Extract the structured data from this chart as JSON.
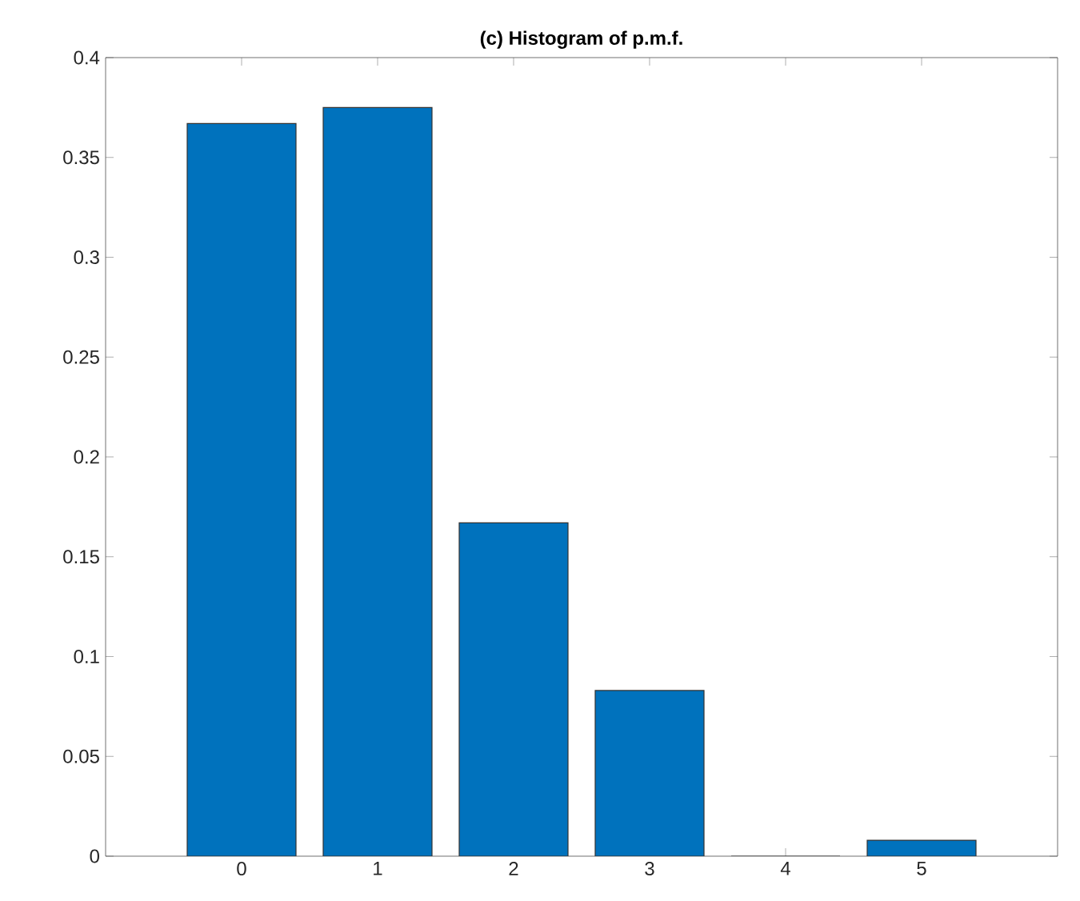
{
  "chart_data": {
    "type": "bar",
    "title": "(c) Histogram of p.m.f.",
    "x": [
      0,
      1,
      2,
      3,
      4,
      5
    ],
    "values": [
      0.367,
      0.375,
      0.167,
      0.083,
      0,
      0.008
    ],
    "color": "#0072bd",
    "xlim": [
      -1,
      6
    ],
    "xticks": [
      0,
      1,
      2,
      3,
      4,
      5
    ],
    "ylim": [
      0,
      0.4
    ],
    "yticks": [
      0,
      0.05,
      0.1,
      0.15,
      0.2,
      0.25,
      0.3,
      0.35,
      0.4
    ],
    "grid": false
  }
}
